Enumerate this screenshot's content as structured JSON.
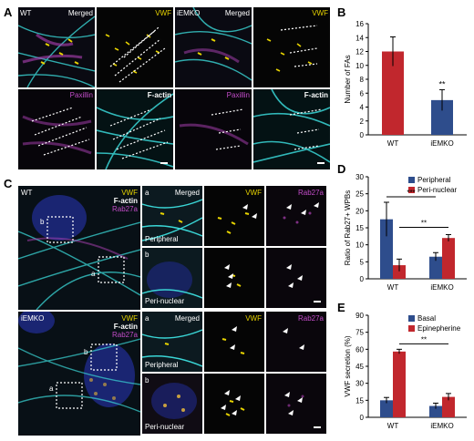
{
  "panels": {
    "A": "A",
    "B": "B",
    "C": "C",
    "D": "D",
    "E": "E"
  },
  "panelA": {
    "row1": [
      {
        "left": "WT",
        "right": "Merged"
      },
      {
        "right": "VWF"
      },
      {
        "left": "iEMKO",
        "right": "Merged"
      },
      {
        "right": "VWF"
      }
    ],
    "row2": [
      {
        "right": "Paxillin"
      },
      {
        "right": "F-actin"
      },
      {
        "right": "Paxillin"
      },
      {
        "right": "F-actin"
      }
    ]
  },
  "panelC": {
    "wt": {
      "name": "WT",
      "vwf": "VWF",
      "factin": "F-actin",
      "rab27a": "Rab27a",
      "box_a": "a",
      "box_b": "b"
    },
    "iemko": {
      "name": "iEMKO",
      "vwf": "VWF",
      "factin": "F-actin",
      "rab27a": "Rab27a",
      "box_a": "a",
      "box_b": "b"
    },
    "zoom_headers": {
      "merged": "Merged",
      "vwf": "VWF",
      "rab27a": "Rab27a"
    },
    "row_letters": {
      "a": "a",
      "b": "b"
    },
    "region": {
      "peripheral": "Peripheral",
      "perinuclear": "Peri-nuclear"
    }
  },
  "colors": {
    "red": "#c1272d",
    "blue": "#2e4d8c",
    "cyan": "#3ad6d6",
    "yellow": "#e8d400",
    "magenta": "#c24cc8"
  },
  "chart_data": [
    {
      "type": "bar",
      "panel": "B",
      "categories": [
        "WT",
        "iEMKO"
      ],
      "values": [
        12,
        5
      ],
      "errors": [
        2.1,
        1.5
      ],
      "ylabel": "Number of FAs",
      "ylim": [
        0,
        16
      ],
      "yticks": [
        0,
        2,
        4,
        6,
        8,
        10,
        12,
        14,
        16
      ],
      "significance": "**"
    },
    {
      "type": "bar",
      "panel": "D",
      "categories": [
        "WT",
        "iEMKO"
      ],
      "series": [
        {
          "name": "Peripheral",
          "values": [
            17.5,
            6.5
          ],
          "errors": [
            5.0,
            1.2
          ]
        },
        {
          "name": "Peri-nuclear",
          "values": [
            4,
            12
          ],
          "errors": [
            1.8,
            1.0
          ]
        }
      ],
      "ylabel": "Ratio of Rab27+ WPBs",
      "ylim": [
        0,
        30
      ],
      "yticks": [
        0,
        5,
        10,
        15,
        20,
        25,
        30
      ],
      "significance": [
        "***",
        "**"
      ],
      "legend": "top-right"
    },
    {
      "type": "bar",
      "panel": "E",
      "categories": [
        "WT",
        "iEMKO"
      ],
      "series": [
        {
          "name": "Basal",
          "values": [
            15,
            10
          ],
          "errors": [
            2.5,
            2.5
          ]
        },
        {
          "name": "Epinepherine",
          "values": [
            58,
            18
          ],
          "errors": [
            2.0,
            3.0
          ]
        }
      ],
      "ylabel": "VWF secretion (%)",
      "ylim": [
        0,
        90
      ],
      "yticks": [
        0,
        15,
        30,
        45,
        60,
        75,
        90
      ],
      "significance": "**",
      "legend": "top-right"
    }
  ]
}
